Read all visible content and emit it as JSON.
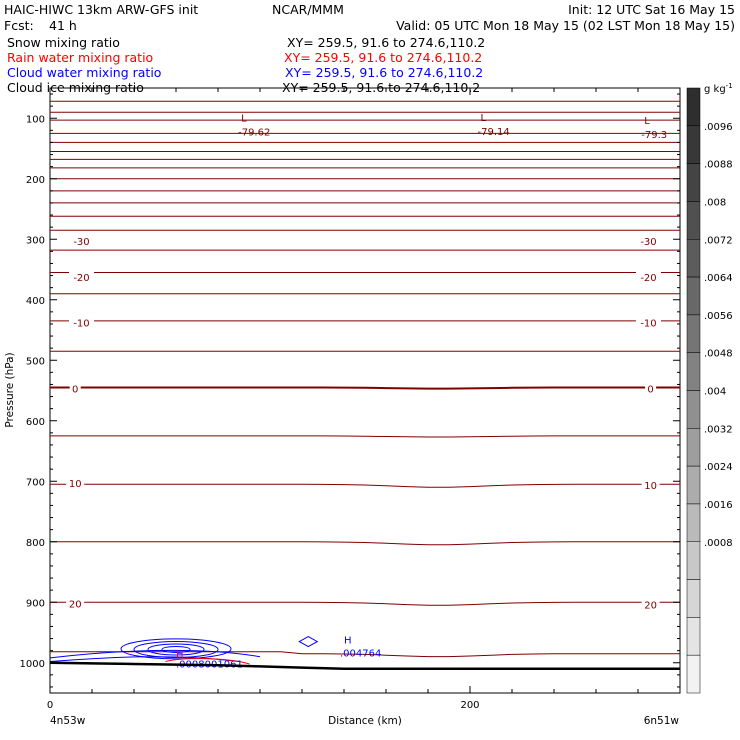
{
  "header": {
    "title_left": "HAIC-HIWC 13km ARW-GFS init",
    "org": "NCAR/MMM",
    "init": "Init: 12 UTC Sat 16 May 15",
    "fcst_label": "Fcst:",
    "fcst_value": "41 h",
    "valid": "Valid: 05 UTC Mon 18 May 15 (02 LST Mon 18 May 15)"
  },
  "fields": [
    {
      "name": "Snow mixing ratio",
      "xy": "XY= 259.5, 91.6 to 274.6,110.2",
      "color": "#000000"
    },
    {
      "name": "Rain water mixing ratio",
      "xy": "XY= 259.5, 91.6 to 274.6,110.2",
      "color": "#ff0000"
    },
    {
      "name": "Cloud water mixing ratio",
      "xy": "XY= 259.5, 91.6 to 274.6,110.2",
      "color": "#0000ff"
    },
    {
      "name": "Cloud ice mixing ratio",
      "xy": "XY= 259.5, 91.6 to 274.6,110.2",
      "color": "#000000"
    }
  ],
  "chart_data": {
    "type": "cross-section",
    "ylabel": "Pressure (hPa)",
    "xlabel": "Distance (km)",
    "x_ticks": [
      0,
      200
    ],
    "y_ticks": [
      100,
      200,
      300,
      400,
      500,
      600,
      700,
      800,
      900,
      1000
    ],
    "xlim": [
      0,
      300
    ],
    "ylim": [
      1050,
      50
    ],
    "left_label": "4n53w",
    "right_label": "6n51w",
    "colorbar": {
      "unit": "g kg",
      "unit_exp": "-1",
      "ticks": [
        ".0096",
        ".0088",
        ".008",
        ".0072",
        ".0064",
        ".0056",
        ".0048",
        ".004",
        ".0032",
        ".0024",
        ".0016",
        ".0008"
      ],
      "colors": [
        "#2e2e2e",
        "#383838",
        "#444444",
        "#505050",
        "#5c5c5c",
        "#686868",
        "#757575",
        "#828282",
        "#909090",
        "#9e9e9e",
        "#acacac",
        "#bababa",
        "#c8c8c8",
        "#d6d6d6",
        "#e4e4e4",
        "#f2f2f2"
      ]
    },
    "temperature_contours": {
      "color": "#800000",
      "levels_hpa": [
        72,
        90,
        103,
        125,
        140,
        155,
        168,
        182,
        200,
        220,
        240,
        262,
        285,
        318,
        355,
        390,
        435,
        485,
        545,
        625,
        705,
        800,
        900,
        985
      ],
      "labels": [
        {
          "text": "-30",
          "x": 15,
          "p": 303
        },
        {
          "text": "-30",
          "x": 285,
          "p": 303
        },
        {
          "text": "-20",
          "x": 15,
          "p": 362
        },
        {
          "text": "-20",
          "x": 285,
          "p": 362
        },
        {
          "text": "-10",
          "x": 15,
          "p": 438
        },
        {
          "text": "-10",
          "x": 285,
          "p": 438
        },
        {
          "text": "0",
          "x": 12,
          "p": 547
        },
        {
          "text": "0",
          "x": 286,
          "p": 547
        },
        {
          "text": "10",
          "x": 12,
          "p": 703
        },
        {
          "text": "10",
          "x": 286,
          "p": 706
        },
        {
          "text": "20",
          "x": 12,
          "p": 902
        },
        {
          "text": "20",
          "x": 286,
          "p": 904
        }
      ],
      "lows": [
        {
          "label": "L",
          "value": "-79.62",
          "x": 91,
          "p": 109
        },
        {
          "label": "L",
          "value": "-79.14",
          "x": 205,
          "p": 108
        },
        {
          "label": "L",
          "value": "-79.3",
          "x": 283,
          "p": 113
        }
      ]
    },
    "cloud_water": {
      "high": {
        "label": "H",
        "value": ".004764",
        "x": 140,
        "p": 975
      }
    },
    "rain_water": {
      "high": {
        "label": "H",
        "value": ".0008001061",
        "x": 63,
        "p": 993
      }
    }
  }
}
